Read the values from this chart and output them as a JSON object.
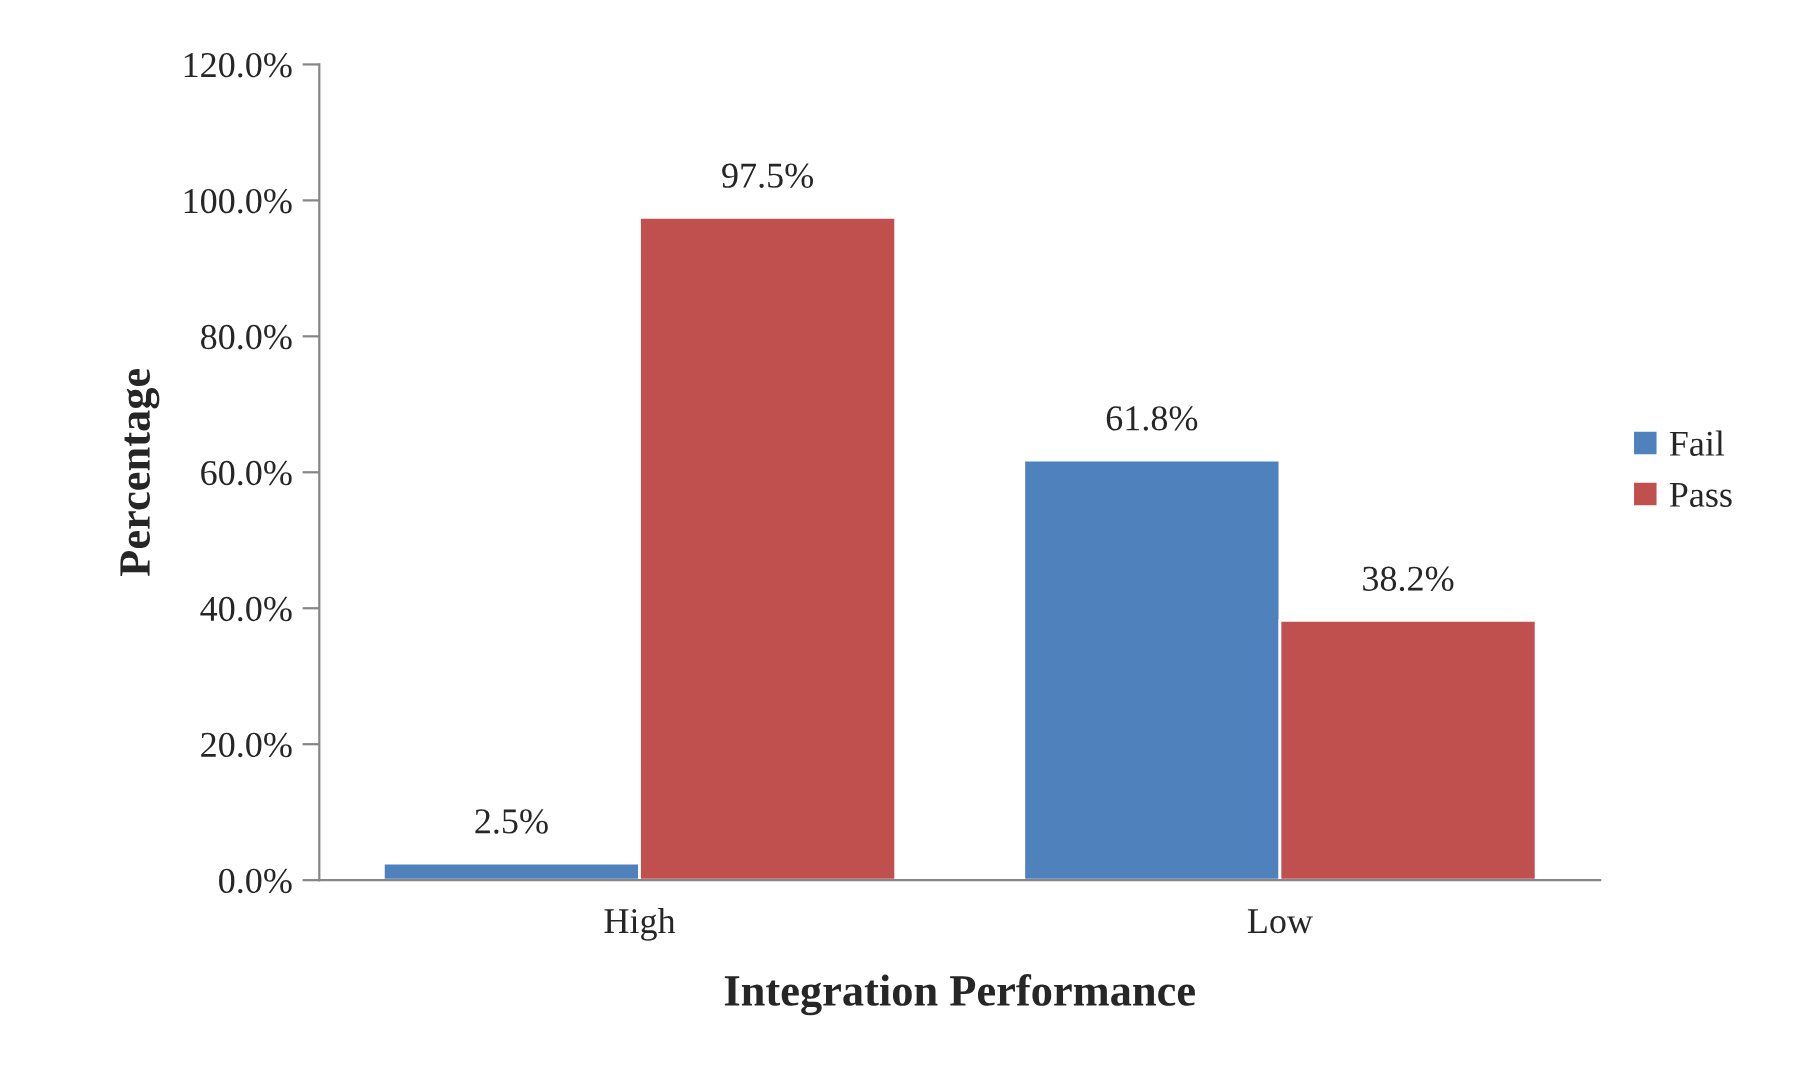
{
  "chart_data": {
    "type": "bar",
    "xlabel": "Integration Performance",
    "ylabel": "Percentage",
    "categories": [
      "High",
      "Low"
    ],
    "series": [
      {
        "name": "Fail",
        "color": "#4f81bd",
        "values": [
          2.5,
          61.8
        ],
        "value_labels": [
          "2.5%",
          "61.8%"
        ]
      },
      {
        "name": "Pass",
        "color": "#c0504d",
        "values": [
          97.5,
          38.2
        ],
        "value_labels": [
          "97.5%",
          "38.2%"
        ]
      }
    ],
    "ylim": [
      0,
      120
    ],
    "yticks": [
      {
        "value": 0,
        "label": "0.0%"
      },
      {
        "value": 20,
        "label": "20.0%"
      },
      {
        "value": 40,
        "label": "40.0%"
      },
      {
        "value": 60,
        "label": "60.0%"
      },
      {
        "value": 80,
        "label": "80.0%"
      },
      {
        "value": 100,
        "label": "100.0%"
      },
      {
        "value": 120,
        "label": "120.0%"
      }
    ],
    "grid": false,
    "legend": "right"
  }
}
